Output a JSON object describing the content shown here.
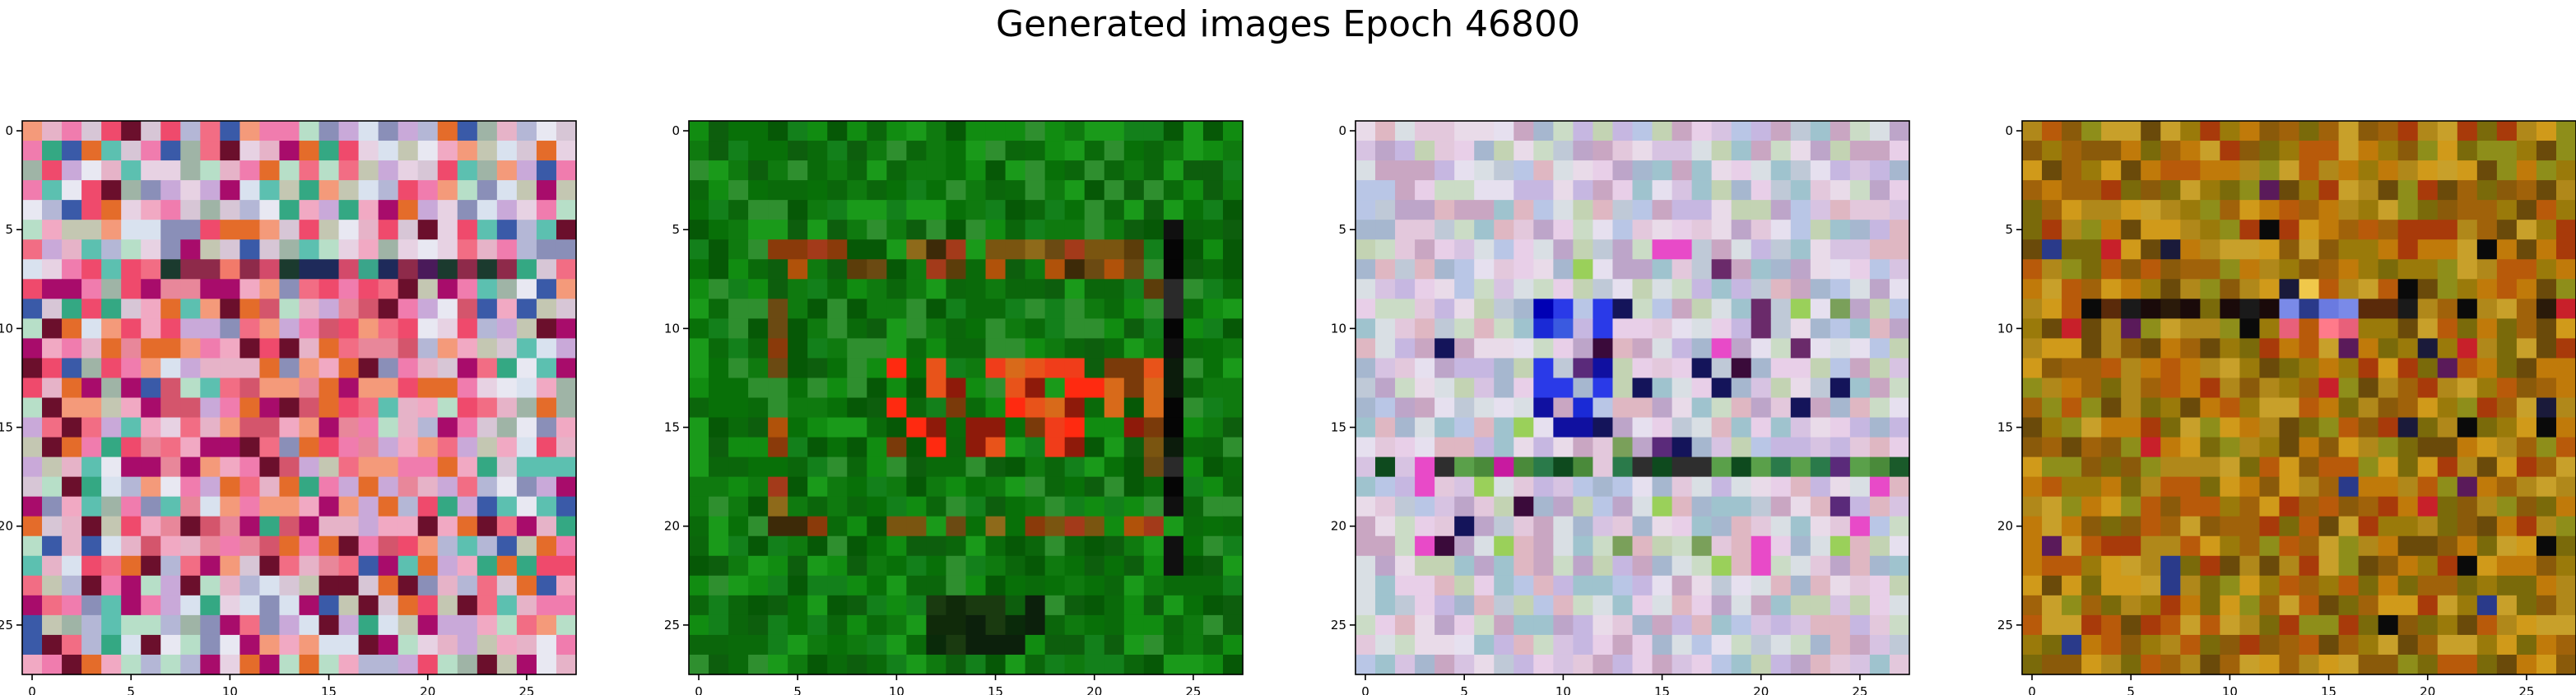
{
  "suptitle": "Generated images Epoch 46800",
  "chart_data": {
    "type": "heatmap",
    "grid_size": 28,
    "xlim": [
      -0.5,
      27.5
    ],
    "ylim": [
      27.5,
      -0.5
    ],
    "xticks": [
      0,
      5,
      10,
      15,
      20,
      25
    ],
    "yticks": [
      0,
      5,
      10,
      15,
      20,
      25
    ],
    "grid": false,
    "panels": [
      {
        "palette": [
          "#9fb4a6",
          "#d7c6d6",
          "#b4b7d6",
          "#e7d2e3",
          "#f26d84",
          "#f49a7a",
          "#e6b3c8",
          "#f07cae",
          "#c9a9d9",
          "#f1a9c3",
          "#d9e2ef",
          "#b7dfc8",
          "#e8e8f2",
          "#c4c7b2",
          "#8a8fb8",
          "#ef4a6c",
          "#e46c2a",
          "#3a5aa8",
          "#6b0f2c",
          "#a80c6b",
          "#34a883",
          "#5cc0b0"
        ],
        "seed": 11,
        "features": [
          {
            "kind": "warm",
            "rows": [
              8,
              22
            ],
            "cols": [
              5,
              22
            ],
            "palette": [
              "#f26d84",
              "#f49a7a",
              "#f07cae",
              "#ef4a6c",
              "#e46c2a",
              "#f1a9c3",
              "#e6b3c8",
              "#c9a9d9",
              "#a80c6b",
              "#6b0f2c",
              "#e8879a",
              "#d4556c"
            ],
            "prob": 0.7
          },
          {
            "kind": "dark_row",
            "rows": [
              7,
              7
            ],
            "cols": [
              6,
              24
            ],
            "palette": [
              "#1e2a5a",
              "#2e6b5a",
              "#4a1a5a",
              "#1b3a2e",
              "#8e2a4a",
              "#d34a6a",
              "#f27a6a",
              "#3aa58a"
            ],
            "prob": 0.75
          }
        ]
      },
      {
        "palette": [
          "#0f7a0f",
          "#0a6a0a",
          "#118c11",
          "#0d5e0d",
          "#1a9a1a",
          "#087008",
          "#2f8f2f",
          "#065806",
          "#13801b",
          "#0b660b"
        ],
        "seed": 23,
        "features": [
          {
            "kind": "frame",
            "rows": [
              6,
              20
            ],
            "cols": [
              4,
              24
            ],
            "palette": [
              "#8a3a0a",
              "#b0520a",
              "#6b4a12",
              "#3d2a08",
              "#8e6a1a",
              "#a33a1a",
              "#7a5510",
              "#5c3d0a"
            ],
            "prob": 0.75
          },
          {
            "kind": "hot",
            "rows": [
              12,
              16
            ],
            "cols": [
              10,
              23
            ],
            "palette": [
              "#e8531a",
              "#f03d1a",
              "#d86a1a",
              "#8e1a0a",
              "#ff2a10",
              "#7a3a0a"
            ],
            "prob": 0.55
          },
          {
            "kind": "dark_col",
            "rows": [
              5,
              22
            ],
            "cols": [
              24,
              24
            ],
            "palette": [
              "#050505",
              "#0c1c0c",
              "#101010",
              "#2a2a2a"
            ],
            "prob": 0.8
          },
          {
            "kind": "dark_bottom",
            "rows": [
              24,
              26
            ],
            "cols": [
              12,
              17
            ],
            "palette": [
              "#0a2a0a",
              "#102a0a",
              "#1a3a10",
              "#0c200c"
            ],
            "prob": 0.8
          }
        ]
      },
      {
        "palette": [
          "#e3c8dc",
          "#c6b7e1",
          "#d9dfe4",
          "#bfc9d7",
          "#e9dbe9",
          "#c9a6c2",
          "#d7c3e2",
          "#b9c6e6",
          "#e6e0ef",
          "#cbdcc6",
          "#dfb7c2",
          "#a6b7cf",
          "#c3d3b3",
          "#e8cfe8",
          "#9fc3ce",
          "#bda5c9"
        ],
        "seed": 37,
        "features": [
          {
            "kind": "blue",
            "rows": [
              9,
              15
            ],
            "cols": [
              9,
              12
            ],
            "palette": [
              "#0a14c8",
              "#1a2ad6",
              "#2a3ae8",
              "#0000b4",
              "#1010a0",
              "#3a5ae0"
            ],
            "prob": 0.7
          },
          {
            "kind": "stripe",
            "rows": [
              17,
              17
            ],
            "cols": [
              0,
              27
            ],
            "palette": [
              "#1a5a2a",
              "#4a8a3a",
              "#2a7a4a",
              "#5aa04a",
              "#0e4a1e",
              "#c81aa0",
              "#2e2e2e"
            ],
            "prob": 0.8
          },
          {
            "kind": "accents",
            "rows": [
              6,
              22
            ],
            "cols": [
              3,
              26
            ],
            "palette": [
              "#6a2a6a",
              "#3a0a3a",
              "#14145a",
              "#7aa05a",
              "#5a2a7a",
              "#e84ac8",
              "#9ad05a"
            ],
            "prob": 0.09
          }
        ]
      },
      {
        "palette": [
          "#a0620a",
          "#c07a0a",
          "#8a5a0a",
          "#b0881a",
          "#d09a1a",
          "#7a6a0a",
          "#9a7a0a",
          "#b85a0a",
          "#c8a02a",
          "#6a4a0a",
          "#8e8e1a",
          "#a83a0a"
        ],
        "seed": 59,
        "features": [
          {
            "kind": "dark_row",
            "rows": [
              9,
              9
            ],
            "cols": [
              2,
              27
            ],
            "palette": [
              "#1a0a0a",
              "#0a0a0a",
              "#2a1a0a",
              "#3a2a0a",
              "#1a1a1a",
              "#5a2a0a"
            ],
            "prob": 0.6
          },
          {
            "kind": "bright",
            "rows": [
              8,
              10
            ],
            "cols": [
              13,
              16
            ],
            "palette": [
              "#7a8ae8",
              "#6a7ae0",
              "#e8607a",
              "#f0c84a",
              "#ff7a8a"
            ],
            "prob": 0.6
          },
          {
            "kind": "accents",
            "rows": [
              3,
              26
            ],
            "cols": [
              0,
              27
            ],
            "palette": [
              "#1a1a3a",
              "#0a0a0a",
              "#2a3a8a",
              "#c8202a",
              "#5a1a5a"
            ],
            "prob": 0.035
          }
        ]
      }
    ]
  }
}
